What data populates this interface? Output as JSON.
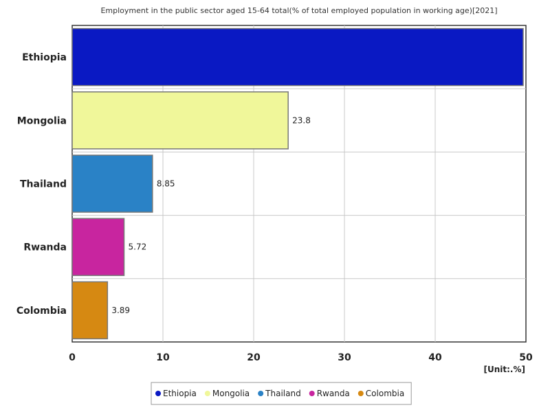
{
  "chart_data": {
    "type": "bar",
    "orientation": "horizontal",
    "title": "Employment in the public sector aged 15-64 total(% of total employed population in working age)[2021]",
    "unit": "[Unit:.%]",
    "categories": [
      "Ethiopia",
      "Mongolia",
      "Thailand",
      "Rwanda",
      "Colombia"
    ],
    "values": [
      49.8,
      23.8,
      8.85,
      5.72,
      3.89
    ],
    "value_labels": [
      "",
      "23.8",
      "8.85",
      "5.72",
      "3.89"
    ],
    "colors": [
      "#0a19c3",
      "#f0f79a",
      "#2a82c6",
      "#c8259f",
      "#d68912"
    ],
    "xlim": [
      0,
      50
    ],
    "xticks": [
      "0",
      "10",
      "20",
      "30",
      "40",
      "50"
    ],
    "grid": true,
    "legend_placement": "bottom-center"
  }
}
